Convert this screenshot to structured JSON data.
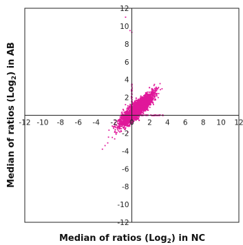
{
  "chart_data": {
    "type": "scatter",
    "xlabel": "Median of ratios (Log",
    "xlabel_sub": "2",
    "xlabel_suffix": ") in NC",
    "ylabel": "Median of ratios (Log",
    "ylabel_sub": "2",
    "ylabel_suffix": ") in AB",
    "xlim": [
      -12,
      12
    ],
    "ylim": [
      -12,
      12
    ],
    "xticks": [
      -12,
      -10,
      -8,
      -6,
      -4,
      -2,
      0,
      2,
      4,
      6,
      8,
      10,
      12
    ],
    "yticks": [
      -12,
      -10,
      -8,
      -6,
      -4,
      -2,
      0,
      2,
      4,
      6,
      8,
      10,
      12
    ],
    "grid": false,
    "marker_color": "#e0189a",
    "cluster": {
      "description_free": true,
      "x_range": [
        -3.7,
        3.5
      ],
      "y_range": [
        -3.8,
        3.6
      ],
      "n_points": 3200
    },
    "outliers": [
      {
        "x": -0.7,
        "y": 11.0
      },
      {
        "x": 0.0,
        "y": 9.3
      },
      {
        "x": -0.2,
        "y": 9.5
      },
      {
        "x": 0.0,
        "y": 3.3
      },
      {
        "x": 0.0,
        "y": 2.4
      },
      {
        "x": 0.0,
        "y": 1.6
      },
      {
        "x": 3.5,
        "y": 0.0
      },
      {
        "x": 2.8,
        "y": 0.0
      },
      {
        "x": 2.2,
        "y": 0.0
      },
      {
        "x": 1.6,
        "y": 0.0
      },
      {
        "x": -3.3,
        "y": -3.8
      },
      {
        "x": -3.0,
        "y": -3.4
      },
      {
        "x": -2.7,
        "y": -3.1
      }
    ]
  }
}
